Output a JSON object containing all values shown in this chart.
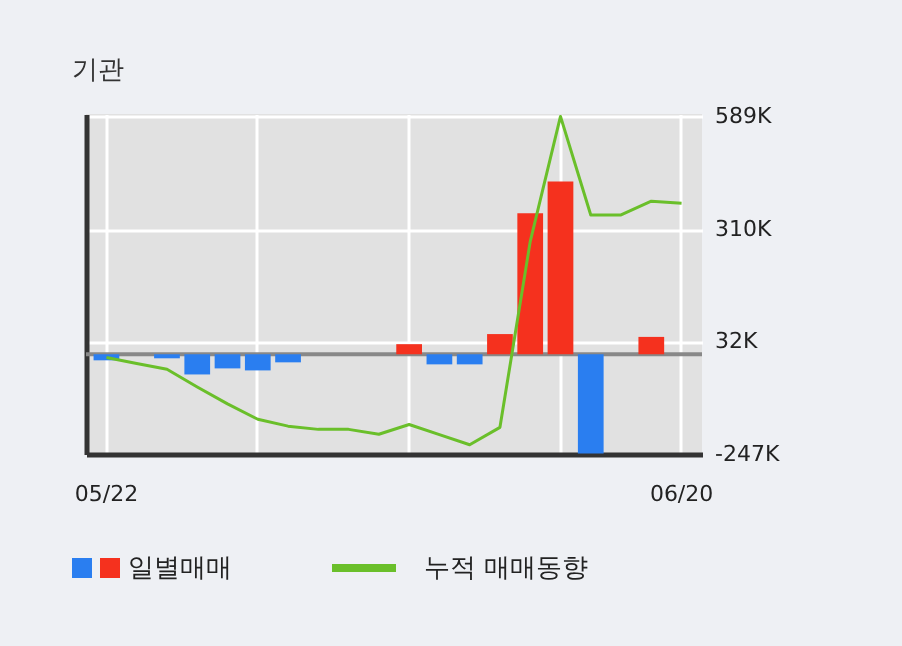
{
  "chart_data": {
    "type": "bar",
    "title": "기관",
    "categories": [
      "05/22",
      null,
      null,
      null,
      null,
      null,
      null,
      null,
      null,
      null,
      null,
      null,
      null,
      null,
      null,
      null,
      null,
      null,
      null,
      "06/20"
    ],
    "series": [
      {
        "name": "일별매매",
        "colors": [
          "#2a7ef0",
          "#2a7ef0",
          "#2a7ef0",
          "#2a7ef0",
          "#2a7ef0",
          "#2a7ef0",
          "#2a7ef0",
          "#2a7ef0",
          "#2a7ef0",
          "#2a7ef0",
          "#f5311e",
          "#2a7ef0",
          "#2a7ef0",
          "#f5311e",
          "#f5311e",
          "#f5311e",
          "#2a7ef0",
          "#2a7ef0",
          "#f5311e",
          "#2a7ef0"
        ],
        "values": [
          -15,
          0,
          -10,
          -50,
          -35,
          -40,
          -20,
          0,
          0,
          0,
          25,
          -25,
          -25,
          50,
          349,
          428,
          -246,
          0,
          43,
          0
        ]
      },
      {
        "name": "누적 매매동향",
        "type": "line",
        "color": "#6abf2a",
        "values": [
          -8,
          -23,
          -37,
          -81,
          -123,
          -161,
          -178,
          -186,
          -186,
          -198,
          -174,
          -199,
          -224,
          -181,
          279,
          589,
          345,
          345,
          379,
          374
        ]
      }
    ],
    "ylim": [
      -247,
      595
    ],
    "yticks": [
      {
        "value": 589,
        "label": "589K"
      },
      {
        "value": 310,
        "label": "310K"
      },
      {
        "value": 32,
        "label": "32K"
      },
      {
        "value": -247,
        "label": "-247K"
      }
    ],
    "ref_lines": [
      {
        "axis": "y",
        "value": 0,
        "color": "#888888"
      }
    ],
    "grid": true,
    "legend": "bottom"
  }
}
